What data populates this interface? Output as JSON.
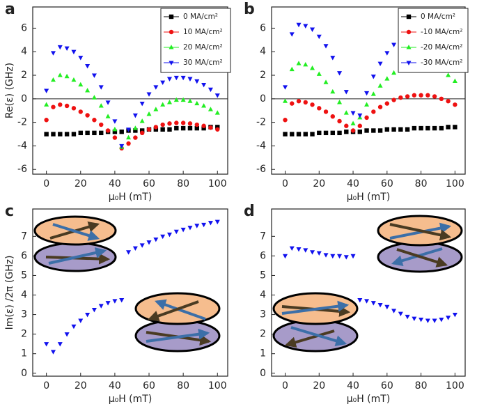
{
  "chart_data": [
    {
      "type": "scatter",
      "panel_label": "a",
      "ylabel": "Re(ε) (GHz)",
      "xlabel": "μ₀H (mT)",
      "x": [
        0,
        4,
        8,
        12,
        16,
        20,
        24,
        28,
        32,
        36,
        40,
        44,
        48,
        52,
        56,
        60,
        64,
        68,
        72,
        76,
        80,
        84,
        88,
        92,
        96,
        100
      ],
      "xlim": [
        -8,
        106
      ],
      "ylim": [
        -6.4,
        7.8
      ],
      "xticks": [
        0,
        20,
        40,
        60,
        80,
        100
      ],
      "yticks": [
        -6,
        -4,
        -2,
        0,
        2,
        4,
        6
      ],
      "zero_line": true,
      "legend": "upper right",
      "series": [
        {
          "name": "0 MA/cm²",
          "color": "#000000",
          "marker": "square",
          "values": [
            -3.0,
            -3.0,
            -3.0,
            -3.0,
            -3.0,
            -2.9,
            -2.9,
            -2.9,
            -2.9,
            -2.8,
            -2.8,
            -2.8,
            -2.7,
            -2.7,
            -2.7,
            -2.6,
            -2.6,
            -2.6,
            -2.6,
            -2.5,
            -2.5,
            -2.5,
            -2.5,
            -2.5,
            -2.4,
            -2.4
          ]
        },
        {
          "name": "10 MA/cm²",
          "color": "#ee1111",
          "marker": "circle",
          "values": [
            -1.8,
            -0.7,
            -0.5,
            -0.6,
            -0.8,
            -1.1,
            -1.4,
            -1.8,
            -2.2,
            -2.7,
            -3.3,
            -4.2,
            -3.8,
            -3.3,
            -2.9,
            -2.6,
            -2.4,
            -2.2,
            -2.1,
            -2.05,
            -2.05,
            -2.1,
            -2.2,
            -2.3,
            -2.45,
            -2.6
          ]
        },
        {
          "name": "20 MA/cm²",
          "color": "#22ee22",
          "marker": "triangle-up",
          "values": [
            -0.5,
            1.6,
            2.0,
            1.9,
            1.6,
            1.2,
            0.7,
            0.1,
            -0.6,
            -1.5,
            -2.6,
            -4.1,
            -3.3,
            -2.5,
            -1.9,
            -1.3,
            -0.9,
            -0.5,
            -0.3,
            -0.1,
            -0.1,
            -0.2,
            -0.4,
            -0.6,
            -0.9,
            -1.2
          ]
        },
        {
          "name": "30 MA/cm²",
          "color": "#1111ee",
          "marker": "triangle-down",
          "values": [
            0.7,
            3.9,
            4.4,
            4.3,
            4.0,
            3.5,
            2.8,
            2.0,
            1.0,
            -0.3,
            -1.9,
            -4.0,
            -2.6,
            -1.4,
            -0.4,
            0.4,
            1.0,
            1.4,
            1.7,
            1.8,
            1.8,
            1.7,
            1.5,
            1.2,
            0.8,
            0.3
          ]
        }
      ]
    },
    {
      "type": "scatter",
      "panel_label": "b",
      "xlabel": "μ₀H (mT)",
      "x": [
        0,
        4,
        8,
        12,
        16,
        20,
        24,
        28,
        32,
        36,
        40,
        44,
        48,
        52,
        56,
        60,
        64,
        68,
        72,
        76,
        80,
        84,
        88,
        92,
        96,
        100
      ],
      "xlim": [
        -8,
        106
      ],
      "ylim": [
        -6.4,
        7.8
      ],
      "xticks": [
        0,
        20,
        40,
        60,
        80,
        100
      ],
      "yticks": [
        -6,
        -4,
        -2,
        0,
        2,
        4,
        6
      ],
      "zero_line": true,
      "legend": "upper right",
      "series": [
        {
          "name": "0 MA/cm²",
          "color": "#000000",
          "marker": "square",
          "values": [
            -3.0,
            -3.0,
            -3.0,
            -3.0,
            -3.0,
            -2.9,
            -2.9,
            -2.9,
            -2.9,
            -2.8,
            -2.8,
            -2.8,
            -2.7,
            -2.7,
            -2.7,
            -2.6,
            -2.6,
            -2.6,
            -2.6,
            -2.5,
            -2.5,
            -2.5,
            -2.5,
            -2.5,
            -2.4,
            -2.4
          ]
        },
        {
          "name": "-10 MA/cm²",
          "color": "#ee1111",
          "marker": "circle",
          "values": [
            -1.8,
            -0.4,
            -0.2,
            -0.3,
            -0.5,
            -0.8,
            -1.1,
            -1.5,
            -1.9,
            -2.3,
            -2.7,
            -2.3,
            -1.6,
            -1.1,
            -0.7,
            -0.4,
            -0.1,
            0.1,
            0.2,
            0.3,
            0.3,
            0.3,
            0.2,
            0.0,
            -0.2,
            -0.5
          ]
        },
        {
          "name": "-20 MA/cm²",
          "color": "#22ee22",
          "marker": "triangle-up",
          "values": [
            -0.2,
            2.5,
            3.0,
            2.9,
            2.6,
            2.1,
            1.4,
            0.6,
            -0.3,
            -1.2,
            -2.1,
            -1.6,
            -0.5,
            0.4,
            1.1,
            1.7,
            2.2,
            2.6,
            2.9,
            3.1,
            3.1,
            3.0,
            2.8,
            2.4,
            2.0,
            1.5
          ]
        },
        {
          "name": "-30 MA/cm²",
          "color": "#1111ee",
          "marker": "triangle-down",
          "values": [
            1.0,
            5.5,
            6.3,
            6.2,
            5.9,
            5.3,
            4.5,
            3.5,
            2.2,
            0.6,
            -1.2,
            -1.4,
            0.5,
            1.9,
            3.0,
            3.9,
            4.6,
            5.2,
            5.6,
            5.9,
            6.0,
            5.9,
            5.6,
            5.0,
            4.4,
            3.6
          ]
        }
      ]
    },
    {
      "type": "scatter",
      "panel_label": "c",
      "ylabel": "Im(ε) /2π (GHz)",
      "xlabel": "μ₀H (mT)",
      "x": [
        0,
        4,
        8,
        12,
        16,
        20,
        24,
        28,
        32,
        36,
        40,
        44,
        48,
        52,
        56,
        60,
        64,
        68,
        72,
        76,
        80,
        84,
        88,
        92,
        96,
        100
      ],
      "xlim": [
        -8,
        106
      ],
      "ylim": [
        -0.15,
        8.4
      ],
      "xticks": [
        0,
        20,
        40,
        60,
        80,
        100
      ],
      "yticks": [
        0,
        1,
        2,
        3,
        4,
        5,
        6,
        7
      ],
      "zero_line": false,
      "series": [
        {
          "color": "#1111ee",
          "marker": "triangle-down",
          "values": [
            1.5,
            1.1,
            1.5,
            2.0,
            2.4,
            2.7,
            3.0,
            3.25,
            3.45,
            3.6,
            3.7,
            3.75,
            6.2,
            6.4,
            6.55,
            6.7,
            6.85,
            7.0,
            7.1,
            7.25,
            7.35,
            7.45,
            7.55,
            7.6,
            7.7,
            7.75
          ]
        }
      ]
    },
    {
      "type": "scatter",
      "panel_label": "d",
      "xlabel": "μ₀H (mT)",
      "x": [
        0,
        4,
        8,
        12,
        16,
        20,
        24,
        28,
        32,
        36,
        40,
        44,
        48,
        52,
        56,
        60,
        64,
        68,
        72,
        76,
        80,
        84,
        88,
        92,
        96,
        100
      ],
      "xlim": [
        -8,
        106
      ],
      "ylim": [
        -0.15,
        8.4
      ],
      "xticks": [
        0,
        20,
        40,
        60,
        80,
        100
      ],
      "yticks": [
        0,
        1,
        2,
        3,
        4,
        5,
        6,
        7
      ],
      "zero_line": false,
      "series": [
        {
          "color": "#1111ee",
          "marker": "triangle-down",
          "values": [
            6.0,
            6.4,
            6.35,
            6.3,
            6.2,
            6.15,
            6.05,
            6.0,
            6.0,
            5.95,
            6.0,
            3.75,
            3.7,
            3.6,
            3.5,
            3.4,
            3.2,
            3.05,
            2.9,
            2.8,
            2.75,
            2.7,
            2.7,
            2.75,
            2.85,
            3.0
          ]
        }
      ]
    }
  ]
}
